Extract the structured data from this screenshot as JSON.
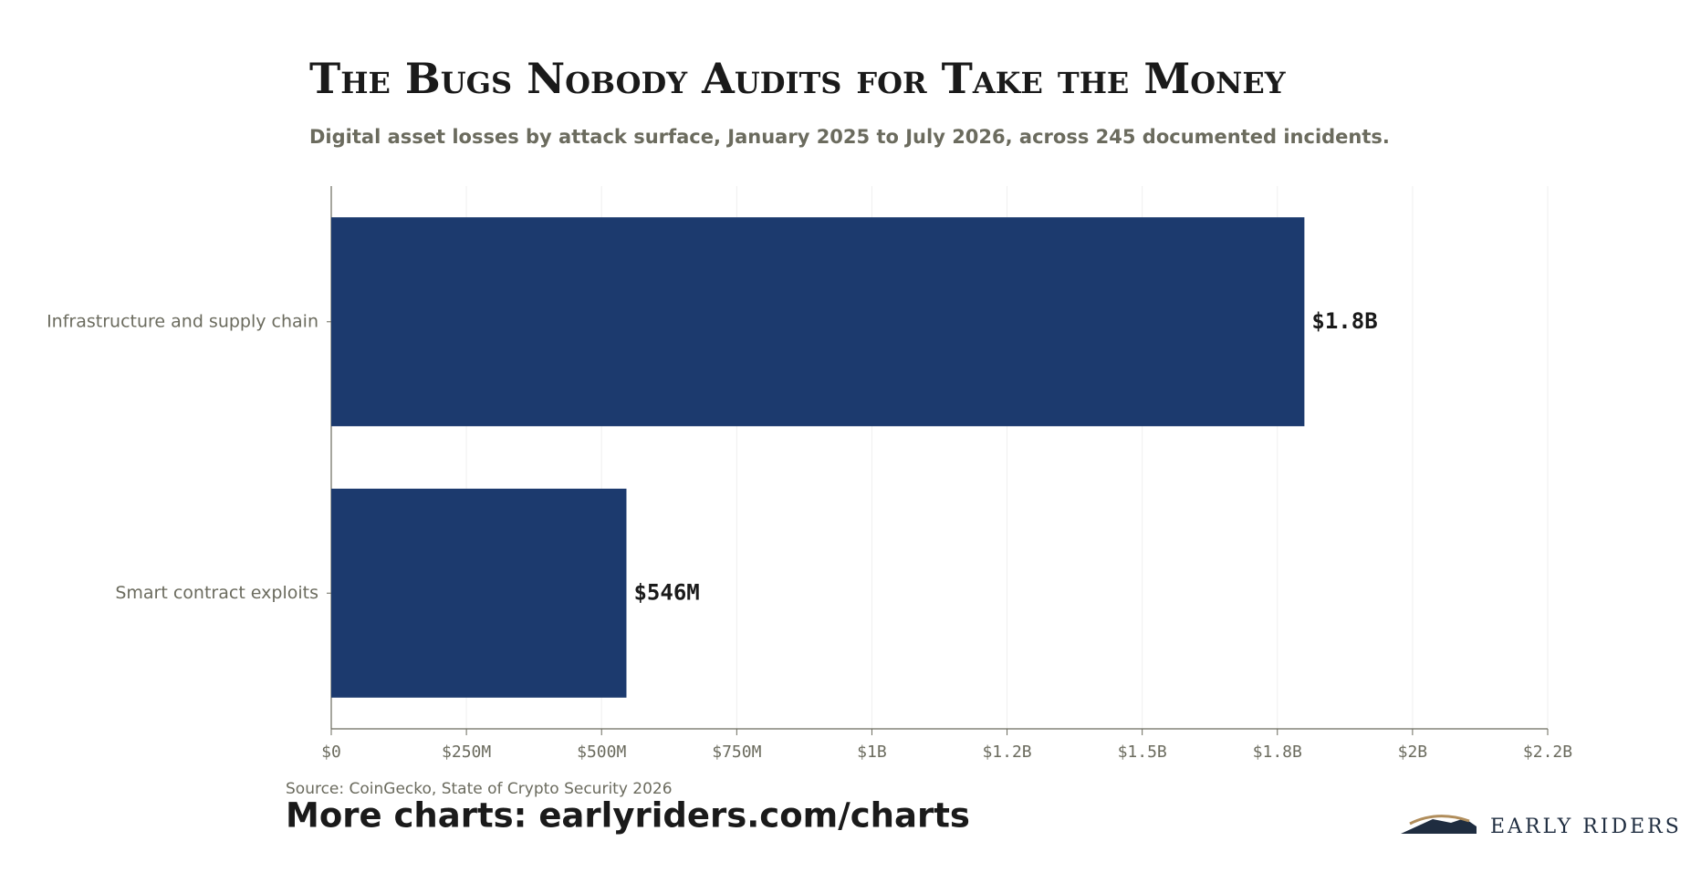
{
  "chart_data": {
    "type": "bar",
    "orientation": "horizontal",
    "title": "The Bugs Nobody Audits for Take the Money",
    "subtitle": "Digital asset losses by attack surface, January 2025 to July 2026, across 245 documented incidents.",
    "categories": [
      "Infrastructure and supply chain",
      "Smart contract exploits"
    ],
    "values": [
      1800000000,
      546000000
    ],
    "value_labels": [
      "$1.8B",
      "$546M"
    ],
    "color": "#1c3a6e",
    "xlim": [
      0,
      2250000000
    ],
    "xticks": [
      {
        "value": 0,
        "label": "$0"
      },
      {
        "value": 250000000,
        "label": "$250M"
      },
      {
        "value": 500000000,
        "label": "$500M"
      },
      {
        "value": 750000000,
        "label": "$750M"
      },
      {
        "value": 1000000000,
        "label": "$1B"
      },
      {
        "value": 1250000000,
        "label": "$1.2B"
      },
      {
        "value": 1500000000,
        "label": "$1.5B"
      },
      {
        "value": 1750000000,
        "label": "$1.8B"
      },
      {
        "value": 2000000000,
        "label": "$2B"
      },
      {
        "value": 2250000000,
        "label": "$2.2B"
      }
    ],
    "grid": true,
    "source": "Source: CoinGecko, State of Crypto Security 2026",
    "footer": "More charts: earlyriders.com/charts",
    "brand": "EARLY RIDERS"
  }
}
